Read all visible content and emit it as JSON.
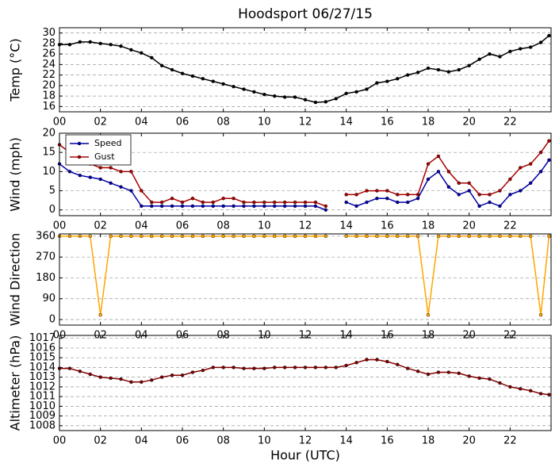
{
  "chart_data": [
    {
      "type": "line",
      "title": "Hoodsport 06/27/15",
      "ylabel": "Temp (°C)",
      "x": [
        0,
        0.5,
        1,
        1.5,
        2,
        2.5,
        3,
        3.5,
        4,
        4.5,
        5,
        5.5,
        6,
        6.5,
        7,
        7.5,
        8,
        8.5,
        9,
        9.5,
        10,
        10.5,
        11,
        11.5,
        12,
        12.5,
        13,
        13.5,
        14,
        14.5,
        15,
        15.5,
        16,
        16.5,
        17,
        17.5,
        18,
        18.5,
        19,
        19.5,
        20,
        20.5,
        21,
        21.5,
        22,
        22.5,
        23,
        23.5,
        23.9
      ],
      "series": [
        {
          "name": "Temp",
          "color": "#000000",
          "values": [
            27.8,
            27.8,
            28.3,
            28.3,
            28,
            27.8,
            27.5,
            26.8,
            26.2,
            25.3,
            23.8,
            23,
            22.3,
            21.8,
            21.3,
            20.8,
            20.3,
            19.8,
            19.3,
            18.8,
            18.3,
            18,
            17.8,
            17.8,
            17.3,
            16.8,
            16.9,
            17.5,
            18.5,
            18.8,
            19.3,
            20.5,
            20.8,
            21.3,
            22,
            22.5,
            23.3,
            23,
            22.6,
            23,
            23.8,
            25,
            26,
            25.5,
            26.5,
            27,
            27.3,
            28.2,
            29.5
          ]
        }
      ],
      "xlim": [
        0,
        24
      ],
      "ylim": [
        15,
        31
      ],
      "yticks": [
        16,
        18,
        20,
        22,
        24,
        26,
        28,
        30
      ],
      "xticks": [
        {
          "value": 0,
          "label": "00"
        },
        {
          "value": 2,
          "label": "02"
        },
        {
          "value": 4,
          "label": "04"
        },
        {
          "value": 6,
          "label": "06"
        },
        {
          "value": 8,
          "label": "08"
        },
        {
          "value": 10,
          "label": "10"
        },
        {
          "value": 12,
          "label": "12"
        },
        {
          "value": 14,
          "label": "14"
        },
        {
          "value": 16,
          "label": "16"
        },
        {
          "value": 18,
          "label": "18"
        },
        {
          "value": 20,
          "label": "20"
        },
        {
          "value": 22,
          "label": "22"
        }
      ],
      "grid": true
    },
    {
      "type": "line",
      "ylabel": "Wind (mph)",
      "legend": "upper left",
      "x": [
        0,
        0.5,
        1,
        1.5,
        2,
        2.5,
        3,
        3.5,
        4,
        4.5,
        5,
        5.5,
        6,
        6.5,
        7,
        7.5,
        8,
        8.5,
        9,
        9.5,
        10,
        10.5,
        11,
        11.5,
        12,
        12.5,
        13,
        13.5,
        14,
        14.5,
        15,
        15.5,
        16,
        16.5,
        17,
        17.5,
        18,
        18.5,
        19,
        19.5,
        20,
        20.5,
        21,
        21.5,
        22,
        22.5,
        23,
        23.5,
        23.9
      ],
      "series": [
        {
          "name": "Speed",
          "color": "#0000aa",
          "values": [
            12,
            10,
            9,
            8.5,
            8,
            7,
            6,
            5,
            1,
            1,
            1,
            1,
            1,
            1,
            1,
            1,
            1,
            1,
            1,
            1,
            1,
            1,
            1,
            1,
            1,
            1,
            0,
            null,
            2,
            1,
            2,
            3,
            3,
            2,
            2,
            3,
            8,
            10,
            6,
            4,
            5,
            1,
            2,
            1,
            4,
            5,
            7,
            10,
            13
          ]
        },
        {
          "name": "Gust",
          "color": "#aa0000",
          "values": [
            17,
            15,
            13,
            12,
            11,
            11,
            10,
            10,
            5,
            2,
            2,
            3,
            2,
            3,
            2,
            2,
            3,
            3,
            2,
            2,
            2,
            2,
            2,
            2,
            2,
            2,
            1,
            null,
            4,
            4,
            5,
            5,
            5,
            4,
            4,
            4,
            12,
            14,
            10,
            7,
            7,
            4,
            4,
            5,
            8,
            11,
            12,
            15,
            18
          ]
        }
      ],
      "xlim": [
        0,
        24
      ],
      "ylim": [
        -1.5,
        20
      ],
      "yticks": [
        0,
        5,
        10,
        15,
        20
      ],
      "xticks": [
        {
          "value": 0,
          "label": "00"
        },
        {
          "value": 2,
          "label": "02"
        },
        {
          "value": 4,
          "label": "04"
        },
        {
          "value": 6,
          "label": "06"
        },
        {
          "value": 8,
          "label": "08"
        },
        {
          "value": 10,
          "label": "10"
        },
        {
          "value": 12,
          "label": "12"
        },
        {
          "value": 14,
          "label": "14"
        },
        {
          "value": 16,
          "label": "16"
        },
        {
          "value": 18,
          "label": "18"
        },
        {
          "value": 20,
          "label": "20"
        },
        {
          "value": 22,
          "label": "22"
        }
      ],
      "grid": true
    },
    {
      "type": "line",
      "ylabel": "Wind Direction",
      "x": [
        0,
        0.5,
        1,
        1.5,
        2,
        2.5,
        3,
        3.5,
        4,
        4.5,
        5,
        5.5,
        6,
        6.5,
        7,
        7.5,
        8,
        8.5,
        9,
        9.5,
        10,
        10.5,
        11,
        11.5,
        12,
        12.5,
        13,
        13.5,
        14,
        14.5,
        15,
        15.5,
        16,
        16.5,
        17,
        17.5,
        18,
        18.5,
        19,
        19.5,
        20,
        20.5,
        21,
        21.5,
        22,
        22.5,
        23,
        23.5,
        23.9
      ],
      "series": [
        {
          "name": "Direction",
          "color": "#ffa500",
          "values": [
            360,
            360,
            360,
            360,
            20,
            360,
            360,
            360,
            360,
            360,
            360,
            360,
            360,
            360,
            360,
            360,
            360,
            360,
            360,
            360,
            360,
            360,
            360,
            360,
            360,
            360,
            360,
            null,
            360,
            360,
            360,
            360,
            360,
            360,
            360,
            360,
            20,
            360,
            360,
            360,
            360,
            360,
            360,
            360,
            360,
            360,
            360,
            20,
            360
          ]
        }
      ],
      "xlim": [
        0,
        24
      ],
      "ylim": [
        -24,
        370
      ],
      "yticks": [
        0,
        90,
        180,
        270,
        360
      ],
      "xticks": [
        {
          "value": 0,
          "label": "00"
        },
        {
          "value": 2,
          "label": "02"
        },
        {
          "value": 4,
          "label": "04"
        },
        {
          "value": 6,
          "label": "06"
        },
        {
          "value": 8,
          "label": "08"
        },
        {
          "value": 10,
          "label": "10"
        },
        {
          "value": 12,
          "label": "12"
        },
        {
          "value": 14,
          "label": "14"
        },
        {
          "value": 16,
          "label": "16"
        },
        {
          "value": 18,
          "label": "18"
        },
        {
          "value": 20,
          "label": "20"
        },
        {
          "value": 22,
          "label": "22"
        }
      ],
      "grid": true
    },
    {
      "type": "line",
      "ylabel": "Altimeter (hPa)",
      "xlabel": "Hour (UTC)",
      "x": [
        0,
        0.5,
        1,
        1.5,
        2,
        2.5,
        3,
        3.5,
        4,
        4.5,
        5,
        5.5,
        6,
        6.5,
        7,
        7.5,
        8,
        8.5,
        9,
        9.5,
        10,
        10.5,
        11,
        11.5,
        12,
        12.5,
        13,
        13.5,
        14,
        14.5,
        15,
        15.5,
        16,
        16.5,
        17,
        17.5,
        18,
        18.5,
        19,
        19.5,
        20,
        20.5,
        21,
        21.5,
        22,
        22.5,
        23,
        23.5,
        23.9
      ],
      "series": [
        {
          "name": "Altimeter",
          "color": "#800000",
          "values": [
            1013.9,
            1013.9,
            1013.6,
            1013.3,
            1013,
            1012.9,
            1012.8,
            1012.5,
            1012.5,
            1012.7,
            1013,
            1013.2,
            1013.2,
            1013.5,
            1013.7,
            1014,
            1014,
            1014,
            1013.9,
            1013.9,
            1013.9,
            1014,
            1014,
            1014,
            1014,
            1014,
            1014,
            1014,
            1014.2,
            1014.5,
            1014.8,
            1014.8,
            1014.6,
            1014.3,
            1013.9,
            1013.6,
            1013.3,
            1013.5,
            1013.5,
            1013.4,
            1013.1,
            1012.9,
            1012.8,
            1012.4,
            1012,
            1011.8,
            1011.6,
            1011.3,
            1011.2
          ]
        }
      ],
      "xlim": [
        0,
        24
      ],
      "ylim": [
        1007.5,
        1017.3
      ],
      "yticks": [
        1008,
        1009,
        1010,
        1011,
        1012,
        1013,
        1014,
        1015,
        1016,
        1017
      ],
      "xticks": [
        {
          "value": 0,
          "label": "00"
        },
        {
          "value": 2,
          "label": "02"
        },
        {
          "value": 4,
          "label": "04"
        },
        {
          "value": 6,
          "label": "06"
        },
        {
          "value": 8,
          "label": "08"
        },
        {
          "value": 10,
          "label": "10"
        },
        {
          "value": 12,
          "label": "12"
        },
        {
          "value": 14,
          "label": "14"
        },
        {
          "value": 16,
          "label": "16"
        },
        {
          "value": 18,
          "label": "18"
        },
        {
          "value": 20,
          "label": "20"
        },
        {
          "value": 22,
          "label": "22"
        }
      ],
      "grid": true
    }
  ]
}
